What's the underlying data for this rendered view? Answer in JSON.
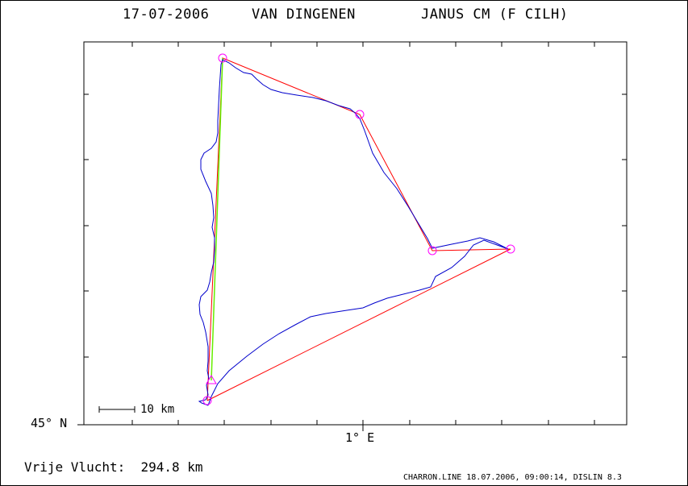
{
  "header": {
    "date": "17-07-2006",
    "pilot": "VAN DINGENEN",
    "glider": "JANUS CM (F CILH)"
  },
  "axes": {
    "lat_label": "45° N",
    "lon_label": "1° E",
    "scale_label": "10 km"
  },
  "summary": {
    "distance_text": "Vrije Vlucht:  294.8 km"
  },
  "footer": {
    "text": "CHARRON.LINE 18.07.2006, 09:00:14, DISLIN 8.3"
  },
  "colors": {
    "track": "#0000cc",
    "task": "#ff0000",
    "leg": "#66ee00",
    "turnpoint": "#ff00ff",
    "axis": "#000000"
  }
}
